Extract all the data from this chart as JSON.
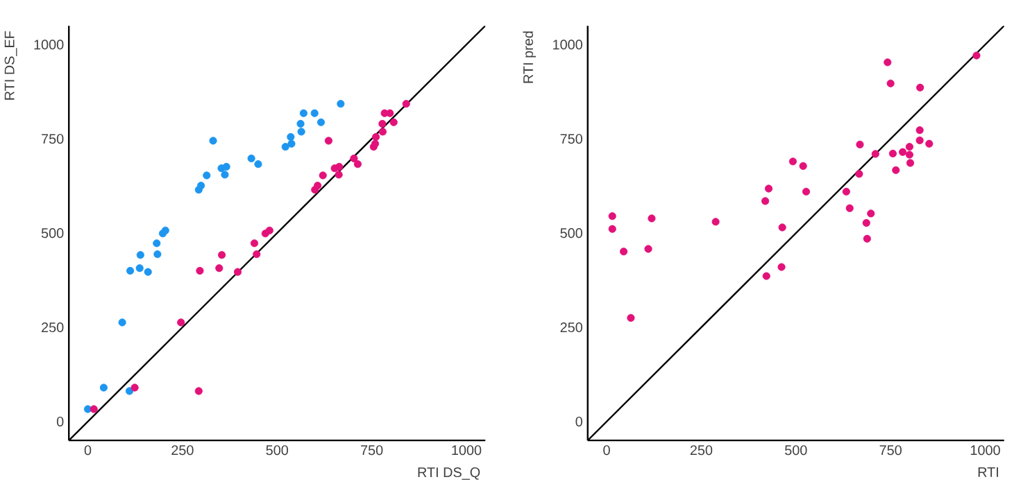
{
  "chart_data": [
    {
      "type": "scatter",
      "xlabel": "RTI DS_Q",
      "ylabel": "RTI DS_EF",
      "xlim": [
        -50,
        1050
      ],
      "ylim": [
        -50,
        1050
      ],
      "xticks": [
        0,
        250,
        500,
        750,
        1000
      ],
      "yticks": [
        0,
        250,
        500,
        750,
        1000
      ],
      "grid": false,
      "marker": "circle",
      "series": [
        {
          "color": "#1e96f0",
          "x": [
            0,
            42,
            110,
            91,
            112,
            137,
            139,
            159,
            182,
            184,
            198,
            205,
            293,
            299,
            314,
            331,
            353,
            366,
            362,
            432,
            450,
            522,
            536,
            538,
            564,
            562,
            570,
            599,
            616,
            668
          ],
          "values": [
            33,
            90,
            81,
            263,
            400,
            407,
            442,
            397,
            473,
            444,
            499,
            507,
            615,
            626,
            653,
            745,
            672,
            676,
            655,
            698,
            683,
            729,
            755,
            737,
            769,
            790,
            818,
            818,
            794,
            843
          ]
        },
        {
          "color": "#e2127a",
          "x": [
            16,
            124,
            293,
            246,
            296,
            347,
            354,
            396,
            440,
            446,
            469,
            480,
            600,
            607,
            621,
            636,
            652,
            664,
            663,
            703,
            713,
            755,
            761,
            759,
            779,
            778,
            784,
            798,
            808,
            841
          ],
          "values": [
            33,
            90,
            81,
            263,
            400,
            407,
            442,
            397,
            473,
            444,
            499,
            507,
            615,
            626,
            653,
            745,
            672,
            676,
            655,
            698,
            683,
            729,
            755,
            737,
            769,
            790,
            818,
            818,
            794,
            843
          ]
        },
        {
          "type": "line",
          "marker": "none",
          "color": "#000000",
          "x": [
            -50,
            1050
          ],
          "values": [
            -50,
            1050
          ]
        }
      ]
    },
    {
      "type": "scatter",
      "xlabel": "RTI",
      "ylabel": "RTI pred",
      "xlim": [
        -50,
        1050
      ],
      "ylim": [
        -50,
        1050
      ],
      "xticks": [
        0,
        250,
        500,
        750,
        1000
      ],
      "yticks": [
        0,
        250,
        500,
        750,
        1000
      ],
      "grid": false,
      "marker": "circle",
      "series": [
        {
          "color": "#e2127a",
          "x": [
            15,
            15,
            45,
            110,
            119,
            64,
            288,
            419,
            428,
            422,
            462,
            464,
            492,
            519,
            527,
            633,
            642,
            667,
            669,
            686,
            688,
            698,
            710,
            742,
            750,
            756,
            764,
            782,
            800,
            800,
            802,
            827,
            827,
            828,
            852,
            977
          ],
          "values": [
            545,
            511,
            451,
            458,
            539,
            275,
            530,
            585,
            618,
            386,
            410,
            515,
            690,
            678,
            610,
            610,
            566,
            657,
            735,
            527,
            485,
            552,
            710,
            953,
            897,
            711,
            667,
            715,
            729,
            708,
            686,
            773,
            746,
            886,
            737,
            971
          ]
        },
        {
          "type": "line",
          "marker": "none",
          "color": "#000000",
          "x": [
            -50,
            1050
          ],
          "values": [
            -50,
            1050
          ]
        }
      ]
    }
  ]
}
